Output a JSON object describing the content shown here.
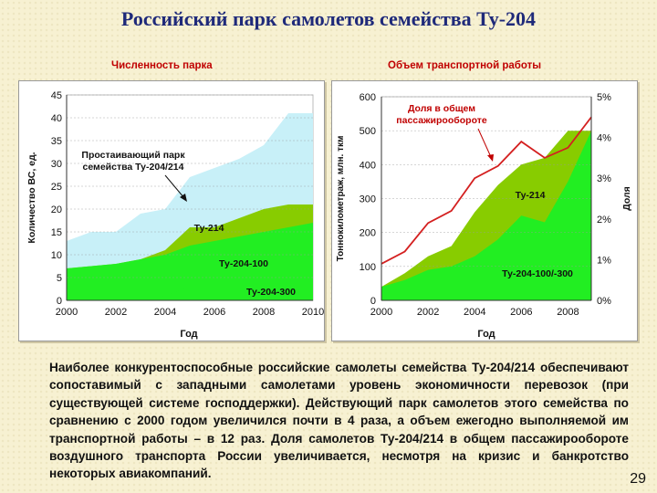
{
  "title": "Российский парк самолетов семейства Ту-204",
  "chart_data": [
    {
      "type": "area",
      "title": "Численность парка",
      "xlabel": "Год",
      "ylabel": "Количество ВС, ед.",
      "xlim": [
        2000,
        2010
      ],
      "ylim": [
        0,
        45
      ],
      "xticks": [
        "2000",
        "2002",
        "2004",
        "2006",
        "2008",
        "2010"
      ],
      "yticks": [
        "0",
        "5",
        "10",
        "15",
        "20",
        "25",
        "30",
        "35",
        "40",
        "45"
      ],
      "x": [
        2000,
        2001,
        2002,
        2003,
        2004,
        2005,
        2006,
        2007,
        2008,
        2009,
        2010
      ],
      "series": [
        {
          "name": "Ту-204-300",
          "values": [
            0,
            0,
            0,
            0,
            1,
            3,
            3,
            3,
            3,
            4,
            4
          ],
          "color": "#22ee22"
        },
        {
          "name": "Ту-204-100",
          "values": [
            7,
            7.5,
            8,
            9,
            10,
            12,
            13,
            14,
            15,
            16,
            17
          ],
          "color": "#22ee22"
        },
        {
          "name": "Ту-214",
          "values": [
            7,
            7.5,
            8,
            9,
            11,
            16,
            16,
            18,
            20,
            21,
            21
          ],
          "color": "#88cc00"
        },
        {
          "name": "",
          "values": [
            13,
            15,
            15,
            19,
            20,
            27,
            29,
            31,
            34,
            41,
            41
          ],
          "color": "#c8f0f8"
        }
      ],
      "annotations": [
        {
          "text_lines": [
            "Простаивающий парк",
            "семейства Ту-204/214"
          ]
        },
        {
          "text": "Ту-214"
        },
        {
          "text": "Ту-204-100"
        },
        {
          "text": "Ту-204-300"
        }
      ]
    },
    {
      "type": "area",
      "title": "Объем транспортной работы",
      "xlabel": "Год",
      "ylabel": "Тоннокилометраж, млн. ткм",
      "y2label": "Доля",
      "xlim": [
        2000,
        2009
      ],
      "ylim": [
        0,
        600
      ],
      "y2lim": [
        0,
        5
      ],
      "xticks": [
        "2000",
        "2002",
        "2004",
        "2006",
        "2008"
      ],
      "yticks": [
        "0",
        "100",
        "200",
        "300",
        "400",
        "500",
        "600"
      ],
      "y2ticks": [
        "0%",
        "1%",
        "2%",
        "3%",
        "4%",
        "5%"
      ],
      "x": [
        2000,
        2001,
        2002,
        2003,
        2004,
        2005,
        2006,
        2007,
        2008,
        2009
      ],
      "series": [
        {
          "name": "Ту-204-100/-300",
          "values": [
            40,
            60,
            90,
            100,
            130,
            180,
            250,
            230,
            350,
            500
          ],
          "color": "#22ee22"
        },
        {
          "name": "Ту-214",
          "values": [
            40,
            80,
            130,
            160,
            260,
            340,
            400,
            420,
            500,
            500
          ],
          "color": "#88cc00"
        },
        {
          "name": "Доля в общем пассажирообороте",
          "values": [
            0.9,
            1.2,
            1.9,
            2.2,
            3.0,
            3.3,
            3.9,
            3.5,
            3.75,
            4.5
          ],
          "color": "#d42020",
          "axis": "right"
        }
      ],
      "annotations": [
        {
          "text_lines": [
            "Доля в общем",
            "пассажирообороте"
          ]
        },
        {
          "text": "Ту-214"
        },
        {
          "text": "Ту-204-100/-300"
        }
      ]
    }
  ],
  "body_text": "Наиболее конкурентоспособные российские самолеты семейства Ту-204/214 обеспечивают сопоставимый с западными самолетами уровень экономичности перевозок (при существующей системе господдержки). Действующий парк самолетов этого семейства по сравнению с 2000 годом увеличился почти в 4 раза, а объем ежегодно выполняемой им транспортной работы – в 12 раз. Доля самолетов Ту-204/214 в общем пассажирообороте воздушного транспорта России увеличивается, несмотря на кризис и банкротство некоторых авиакомпаний.",
  "page_number": "29"
}
